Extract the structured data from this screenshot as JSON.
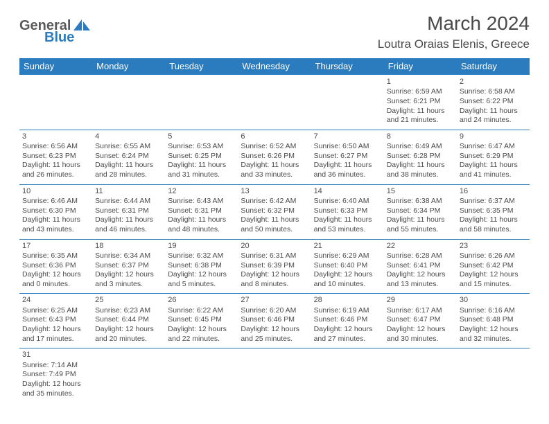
{
  "logo": {
    "t1": "General",
    "t2": "Blue",
    "shape_color": "#2b7bbf"
  },
  "title": "March 2024",
  "location": "Loutra Oraias Elenis, Greece",
  "header_bg": "#2b7bbf",
  "header_fg": "#ffffff",
  "border_color": "#2b7bbf",
  "text_color": "#4a4a4a",
  "font_size_body": 10.5,
  "daynames": [
    "Sunday",
    "Monday",
    "Tuesday",
    "Wednesday",
    "Thursday",
    "Friday",
    "Saturday"
  ],
  "days": [
    {
      "n": 1,
      "sr": "6:59 AM",
      "ss": "6:21 PM",
      "dl": "11 hours and 21 minutes."
    },
    {
      "n": 2,
      "sr": "6:58 AM",
      "ss": "6:22 PM",
      "dl": "11 hours and 24 minutes."
    },
    {
      "n": 3,
      "sr": "6:56 AM",
      "ss": "6:23 PM",
      "dl": "11 hours and 26 minutes."
    },
    {
      "n": 4,
      "sr": "6:55 AM",
      "ss": "6:24 PM",
      "dl": "11 hours and 28 minutes."
    },
    {
      "n": 5,
      "sr": "6:53 AM",
      "ss": "6:25 PM",
      "dl": "11 hours and 31 minutes."
    },
    {
      "n": 6,
      "sr": "6:52 AM",
      "ss": "6:26 PM",
      "dl": "11 hours and 33 minutes."
    },
    {
      "n": 7,
      "sr": "6:50 AM",
      "ss": "6:27 PM",
      "dl": "11 hours and 36 minutes."
    },
    {
      "n": 8,
      "sr": "6:49 AM",
      "ss": "6:28 PM",
      "dl": "11 hours and 38 minutes."
    },
    {
      "n": 9,
      "sr": "6:47 AM",
      "ss": "6:29 PM",
      "dl": "11 hours and 41 minutes."
    },
    {
      "n": 10,
      "sr": "6:46 AM",
      "ss": "6:30 PM",
      "dl": "11 hours and 43 minutes."
    },
    {
      "n": 11,
      "sr": "6:44 AM",
      "ss": "6:31 PM",
      "dl": "11 hours and 46 minutes."
    },
    {
      "n": 12,
      "sr": "6:43 AM",
      "ss": "6:31 PM",
      "dl": "11 hours and 48 minutes."
    },
    {
      "n": 13,
      "sr": "6:42 AM",
      "ss": "6:32 PM",
      "dl": "11 hours and 50 minutes."
    },
    {
      "n": 14,
      "sr": "6:40 AM",
      "ss": "6:33 PM",
      "dl": "11 hours and 53 minutes."
    },
    {
      "n": 15,
      "sr": "6:38 AM",
      "ss": "6:34 PM",
      "dl": "11 hours and 55 minutes."
    },
    {
      "n": 16,
      "sr": "6:37 AM",
      "ss": "6:35 PM",
      "dl": "11 hours and 58 minutes."
    },
    {
      "n": 17,
      "sr": "6:35 AM",
      "ss": "6:36 PM",
      "dl": "12 hours and 0 minutes."
    },
    {
      "n": 18,
      "sr": "6:34 AM",
      "ss": "6:37 PM",
      "dl": "12 hours and 3 minutes."
    },
    {
      "n": 19,
      "sr": "6:32 AM",
      "ss": "6:38 PM",
      "dl": "12 hours and 5 minutes."
    },
    {
      "n": 20,
      "sr": "6:31 AM",
      "ss": "6:39 PM",
      "dl": "12 hours and 8 minutes."
    },
    {
      "n": 21,
      "sr": "6:29 AM",
      "ss": "6:40 PM",
      "dl": "12 hours and 10 minutes."
    },
    {
      "n": 22,
      "sr": "6:28 AM",
      "ss": "6:41 PM",
      "dl": "12 hours and 13 minutes."
    },
    {
      "n": 23,
      "sr": "6:26 AM",
      "ss": "6:42 PM",
      "dl": "12 hours and 15 minutes."
    },
    {
      "n": 24,
      "sr": "6:25 AM",
      "ss": "6:43 PM",
      "dl": "12 hours and 17 minutes."
    },
    {
      "n": 25,
      "sr": "6:23 AM",
      "ss": "6:44 PM",
      "dl": "12 hours and 20 minutes."
    },
    {
      "n": 26,
      "sr": "6:22 AM",
      "ss": "6:45 PM",
      "dl": "12 hours and 22 minutes."
    },
    {
      "n": 27,
      "sr": "6:20 AM",
      "ss": "6:46 PM",
      "dl": "12 hours and 25 minutes."
    },
    {
      "n": 28,
      "sr": "6:19 AM",
      "ss": "6:46 PM",
      "dl": "12 hours and 27 minutes."
    },
    {
      "n": 29,
      "sr": "6:17 AM",
      "ss": "6:47 PM",
      "dl": "12 hours and 30 minutes."
    },
    {
      "n": 30,
      "sr": "6:16 AM",
      "ss": "6:48 PM",
      "dl": "12 hours and 32 minutes."
    },
    {
      "n": 31,
      "sr": "7:14 AM",
      "ss": "7:49 PM",
      "dl": "12 hours and 35 minutes."
    }
  ],
  "first_weekday_index": 5,
  "labels": {
    "sunrise": "Sunrise:",
    "sunset": "Sunset:",
    "daylight": "Daylight:"
  }
}
